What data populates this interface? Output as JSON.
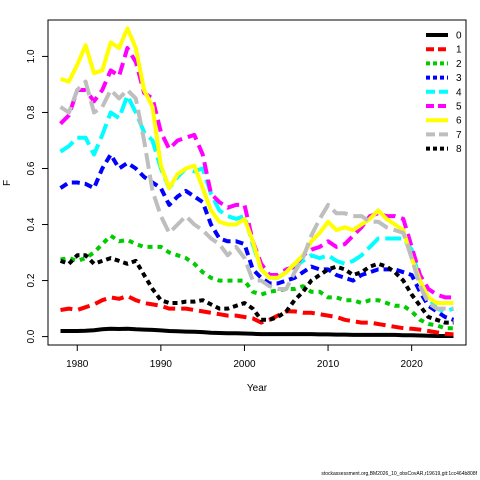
{
  "chart_data": {
    "type": "line",
    "xlabel": "Year",
    "ylabel": "F",
    "xlim": [
      1976.5,
      2026.5
    ],
    "ylim": [
      -0.03,
      1.13
    ],
    "xticks": [
      1980,
      1990,
      2000,
      2010,
      2020
    ],
    "yticks": [
      0.0,
      0.2,
      0.4,
      0.6,
      0.8,
      1.0
    ],
    "xtick_labels": [
      "1980",
      "1990",
      "2000",
      "2010",
      "2020"
    ],
    "ytick_labels": [
      "0.0",
      "0.2",
      "0.4",
      "0.6",
      "0.8",
      "1.0"
    ],
    "legend_position": "top-right",
    "grid": false,
    "x": [
      1978,
      1979,
      1980,
      1981,
      1982,
      1983,
      1984,
      1985,
      1986,
      1987,
      1988,
      1989,
      1990,
      1991,
      1992,
      1993,
      1994,
      1995,
      1996,
      1997,
      1998,
      1999,
      2000,
      2001,
      2002,
      2003,
      2004,
      2005,
      2006,
      2007,
      2008,
      2009,
      2010,
      2011,
      2012,
      2013,
      2014,
      2015,
      2016,
      2017,
      2018,
      2019,
      2020,
      2021,
      2022,
      2023,
      2024,
      2025
    ],
    "series": [
      {
        "name": "0",
        "color": "#000000",
        "dash": "solid",
        "values": [
          0.02,
          0.02,
          0.02,
          0.021,
          0.023,
          0.026,
          0.028,
          0.027,
          0.028,
          0.026,
          0.025,
          0.024,
          0.022,
          0.02,
          0.019,
          0.018,
          0.017,
          0.016,
          0.014,
          0.013,
          0.012,
          0.012,
          0.011,
          0.01,
          0.009,
          0.009,
          0.009,
          0.009,
          0.009,
          0.009,
          0.009,
          0.008,
          0.008,
          0.007,
          0.007,
          0.006,
          0.006,
          0.006,
          0.006,
          0.006,
          0.006,
          0.005,
          0.005,
          0.004,
          0.003,
          0.002,
          0.002,
          0.002
        ]
      },
      {
        "name": "1",
        "color": "#ff0000",
        "dash": "12 6",
        "values": [
          0.095,
          0.1,
          0.095,
          0.105,
          0.115,
          0.13,
          0.14,
          0.135,
          0.145,
          0.13,
          0.12,
          0.115,
          0.11,
          0.1,
          0.1,
          0.1,
          0.095,
          0.09,
          0.085,
          0.08,
          0.075,
          0.075,
          0.07,
          0.065,
          0.05,
          0.06,
          0.075,
          0.09,
          0.09,
          0.085,
          0.085,
          0.08,
          0.075,
          0.07,
          0.06,
          0.055,
          0.05,
          0.05,
          0.045,
          0.04,
          0.035,
          0.03,
          0.028,
          0.025,
          0.02,
          0.015,
          0.01,
          0.008
        ]
      },
      {
        "name": "2",
        "color": "#00cc00",
        "dash": "5 5",
        "values": [
          0.275,
          0.28,
          0.27,
          0.28,
          0.3,
          0.33,
          0.36,
          0.34,
          0.345,
          0.33,
          0.32,
          0.32,
          0.32,
          0.3,
          0.29,
          0.28,
          0.26,
          0.23,
          0.21,
          0.2,
          0.2,
          0.2,
          0.2,
          0.16,
          0.15,
          0.16,
          0.165,
          0.17,
          0.17,
          0.18,
          0.16,
          0.16,
          0.14,
          0.14,
          0.13,
          0.13,
          0.12,
          0.13,
          0.13,
          0.12,
          0.11,
          0.11,
          0.09,
          0.06,
          0.045,
          0.04,
          0.03,
          0.03
        ]
      },
      {
        "name": "3",
        "color": "#0000ff",
        "dash": "8 5",
        "values": [
          0.53,
          0.55,
          0.55,
          0.545,
          0.53,
          0.6,
          0.65,
          0.6,
          0.62,
          0.6,
          0.57,
          0.55,
          0.53,
          0.47,
          0.5,
          0.52,
          0.5,
          0.48,
          0.4,
          0.35,
          0.34,
          0.34,
          0.33,
          0.24,
          0.21,
          0.19,
          0.19,
          0.2,
          0.21,
          0.23,
          0.25,
          0.24,
          0.24,
          0.22,
          0.21,
          0.2,
          0.22,
          0.23,
          0.24,
          0.24,
          0.24,
          0.23,
          0.22,
          0.16,
          0.11,
          0.09,
          0.07,
          0.06
        ]
      },
      {
        "name": "4",
        "color": "#00ffff",
        "dash": "16 6",
        "values": [
          0.66,
          0.68,
          0.71,
          0.71,
          0.65,
          0.72,
          0.8,
          0.78,
          0.86,
          0.8,
          0.73,
          0.7,
          0.6,
          0.53,
          0.57,
          0.6,
          0.59,
          0.6,
          0.51,
          0.45,
          0.43,
          0.42,
          0.43,
          0.33,
          0.24,
          0.21,
          0.21,
          0.23,
          0.25,
          0.27,
          0.29,
          0.28,
          0.29,
          0.27,
          0.26,
          0.27,
          0.29,
          0.32,
          0.35,
          0.35,
          0.35,
          0.35,
          0.31,
          0.2,
          0.14,
          0.1,
          0.09,
          0.1
        ]
      },
      {
        "name": "5",
        "color": "#ff00ff",
        "dash": "12 6",
        "values": [
          0.76,
          0.79,
          0.88,
          0.88,
          0.84,
          0.88,
          0.95,
          0.93,
          1.03,
          0.98,
          0.87,
          0.85,
          0.73,
          0.67,
          0.7,
          0.71,
          0.72,
          0.65,
          0.51,
          0.48,
          0.46,
          0.47,
          0.47,
          0.34,
          0.26,
          0.22,
          0.22,
          0.24,
          0.25,
          0.29,
          0.31,
          0.32,
          0.34,
          0.32,
          0.33,
          0.36,
          0.39,
          0.43,
          0.44,
          0.43,
          0.43,
          0.42,
          0.32,
          0.22,
          0.17,
          0.15,
          0.14,
          0.14
        ]
      },
      {
        "name": "6",
        "color": "#ffff00",
        "dash": "solid",
        "values": [
          0.92,
          0.91,
          0.97,
          1.04,
          0.94,
          0.95,
          1.05,
          1.03,
          1.1,
          1.03,
          0.88,
          0.82,
          0.61,
          0.53,
          0.58,
          0.6,
          0.61,
          0.53,
          0.45,
          0.41,
          0.4,
          0.4,
          0.42,
          0.34,
          0.24,
          0.21,
          0.21,
          0.23,
          0.26,
          0.29,
          0.34,
          0.37,
          0.41,
          0.38,
          0.39,
          0.38,
          0.4,
          0.42,
          0.45,
          0.42,
          0.4,
          0.38,
          0.28,
          0.2,
          0.14,
          0.12,
          0.12,
          0.12
        ]
      },
      {
        "name": "7",
        "color": "#bebebe",
        "dash": "16 6",
        "values": [
          0.82,
          0.8,
          0.88,
          0.91,
          0.8,
          0.82,
          0.88,
          0.85,
          0.88,
          0.85,
          0.7,
          0.52,
          0.43,
          0.37,
          0.4,
          0.43,
          0.4,
          0.38,
          0.35,
          0.33,
          0.29,
          0.32,
          0.28,
          0.2,
          0.2,
          0.18,
          0.17,
          0.17,
          0.23,
          0.28,
          0.36,
          0.42,
          0.47,
          0.44,
          0.44,
          0.43,
          0.43,
          0.41,
          0.41,
          0.39,
          0.38,
          0.37,
          0.28,
          0.18,
          0.12,
          0.1,
          0.1,
          0.1
        ]
      },
      {
        "name": "8",
        "color": "#000000",
        "dash": "5 4",
        "values": [
          0.27,
          0.26,
          0.29,
          0.29,
          0.26,
          0.27,
          0.28,
          0.27,
          0.26,
          0.27,
          0.22,
          0.17,
          0.13,
          0.12,
          0.12,
          0.125,
          0.125,
          0.13,
          0.115,
          0.1,
          0.1,
          0.11,
          0.12,
          0.1,
          0.06,
          0.06,
          0.07,
          0.09,
          0.13,
          0.16,
          0.2,
          0.22,
          0.24,
          0.25,
          0.24,
          0.22,
          0.23,
          0.25,
          0.26,
          0.25,
          0.23,
          0.2,
          0.15,
          0.11,
          0.07,
          0.06,
          0.05,
          0.05
        ]
      }
    ]
  },
  "footer": {
    "text": "stockassessment.org,BM2026_10_obsCovAR,r19619,git:1cc464b808f"
  }
}
